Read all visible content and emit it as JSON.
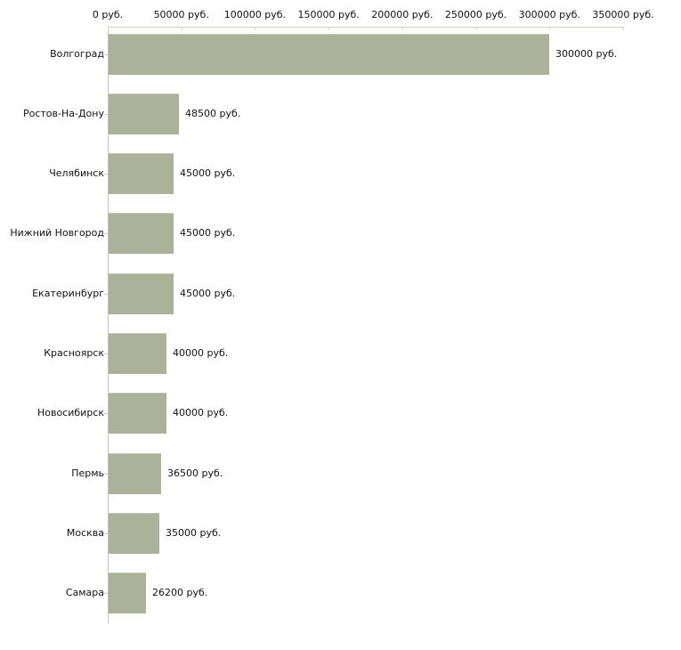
{
  "chart_data": {
    "type": "bar",
    "orientation": "horizontal",
    "title": "",
    "categories": [
      "Волгоград",
      "Ростов-На-Дону",
      "Челябинск",
      "Нижний Новгород",
      "Екатеринбург",
      "Красноярск",
      "Новосибирск",
      "Пермь",
      "Москва",
      "Самара"
    ],
    "values": [
      300000,
      48500,
      45000,
      45000,
      45000,
      40000,
      40000,
      36500,
      35000,
      26200
    ],
    "value_labels": [
      "300000 руб.",
      "48500 руб.",
      "45000 руб.",
      "45000 руб.",
      "45000 руб.",
      "40000 руб.",
      "40000 руб.",
      "36500 руб.",
      "35000 руб.",
      "26200 руб."
    ],
    "x_ticks": [
      0,
      50000,
      100000,
      150000,
      200000,
      250000,
      300000,
      350000
    ],
    "x_tick_labels": [
      "0 руб.",
      "50000 руб.",
      "100000 руб.",
      "150000 руб.",
      "200000 руб.",
      "250000 руб.",
      "300000 руб.",
      "350000 руб."
    ],
    "xlim": [
      0,
      350000
    ],
    "xlabel": "",
    "ylabel": "",
    "grid": false,
    "legend": false
  },
  "style": {
    "background": "#ffffff",
    "bar_fill": "#acb29a",
    "bar_top_edge": "#c5c9b3",
    "x_axis_line": "#cdd0ba",
    "y_axis_line": "#c3c3c3",
    "x_tick_color": "#d3d6c0",
    "category_tick_color": "#d9cdc1",
    "text_color": "#111111"
  }
}
